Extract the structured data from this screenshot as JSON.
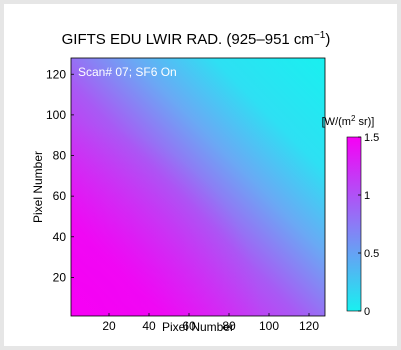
{
  "chart_data": {
    "type": "heatmap",
    "title_main": "GIFTS EDU LWIR RAD. (925–951 cm",
    "title_sup": "−1",
    "title_tail": ")",
    "annotation": "Scan# 07; SF6 On",
    "xlabel": "Pixel Number",
    "ylabel": "Pixel Number",
    "x_ticks": [
      20,
      40,
      60,
      80,
      100,
      120
    ],
    "y_ticks": [
      20,
      40,
      60,
      80,
      100,
      120
    ],
    "xlim": [
      1,
      128
    ],
    "ylim": [
      1,
      128
    ],
    "colorbar": {
      "label_pre": "[W/(m",
      "label_sup": "2",
      "label_post": " sr)]",
      "ticks": [
        "1.5",
        "1",
        "0.5",
        "0"
      ],
      "range": [
        0,
        1.5
      ]
    },
    "field": {
      "description_values": "radiance peaks near lower-left (~1.5) and decreases toward upper-right (~0)",
      "max_value": 1.5,
      "min_value": 0.0
    },
    "colors": {
      "low": "#19f0f0",
      "mid": "#8c7af6",
      "high": "#f700f5"
    }
  }
}
